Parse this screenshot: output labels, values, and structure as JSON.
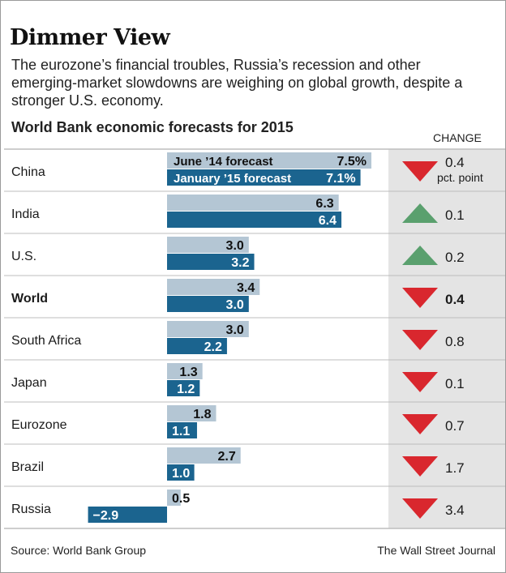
{
  "header": {
    "title": "Dimmer View",
    "subtitle": "The eurozone’s financial troubles, Russia’s recession and other emerging-market slowdowns are weighing on global growth, despite a stronger U.S. economy.",
    "chart_heading": "World Bank economic forecasts for 2015",
    "change_heading": "CHANGE"
  },
  "footer": {
    "source": "Source: World Bank Group",
    "credit": "The Wall Street Journal"
  },
  "colors": {
    "june_bar": "#b4c6d4",
    "january_bar": "#1b648f",
    "up_arrow": "#5aa06e",
    "down_arrow": "#d9272e",
    "change_panel": "#e4e4e4",
    "row_divider": "#bdbdbd"
  },
  "chart_data": {
    "type": "bar",
    "title": "World Bank economic forecasts for 2015",
    "categories": [
      "China",
      "India",
      "U.S.",
      "World",
      "South Africa",
      "Japan",
      "Eurozone",
      "Brazil",
      "Russia"
    ],
    "bold_category": "World",
    "series": [
      {
        "name": "June ’14 forecast",
        "values": [
          7.5,
          6.3,
          3.0,
          3.4,
          3.0,
          1.3,
          1.8,
          2.7,
          0.5
        ],
        "labels": [
          "7.5%",
          "6.3",
          "3.0",
          "3.4",
          "3.0",
          "1.3",
          "1.8",
          "2.7",
          "0.5"
        ]
      },
      {
        "name": "January ’15 forecast",
        "values": [
          7.1,
          6.4,
          3.2,
          3.0,
          2.2,
          1.2,
          1.1,
          1.0,
          -2.9
        ],
        "labels": [
          "7.1%",
          "6.4",
          "3.2",
          "3.0",
          "2.2",
          "1.2",
          "1.1",
          "1.0",
          "−2.9"
        ]
      }
    ],
    "change": {
      "direction": [
        "down",
        "up",
        "up",
        "down",
        "down",
        "down",
        "down",
        "down",
        "down"
      ],
      "values": [
        "0.4",
        "0.1",
        "0.2",
        "0.4",
        "0.8",
        "0.1",
        "0.7",
        "1.7",
        "3.4"
      ],
      "first_unit": "pct. point"
    },
    "xlim": [
      -2.9,
      7.5
    ]
  }
}
